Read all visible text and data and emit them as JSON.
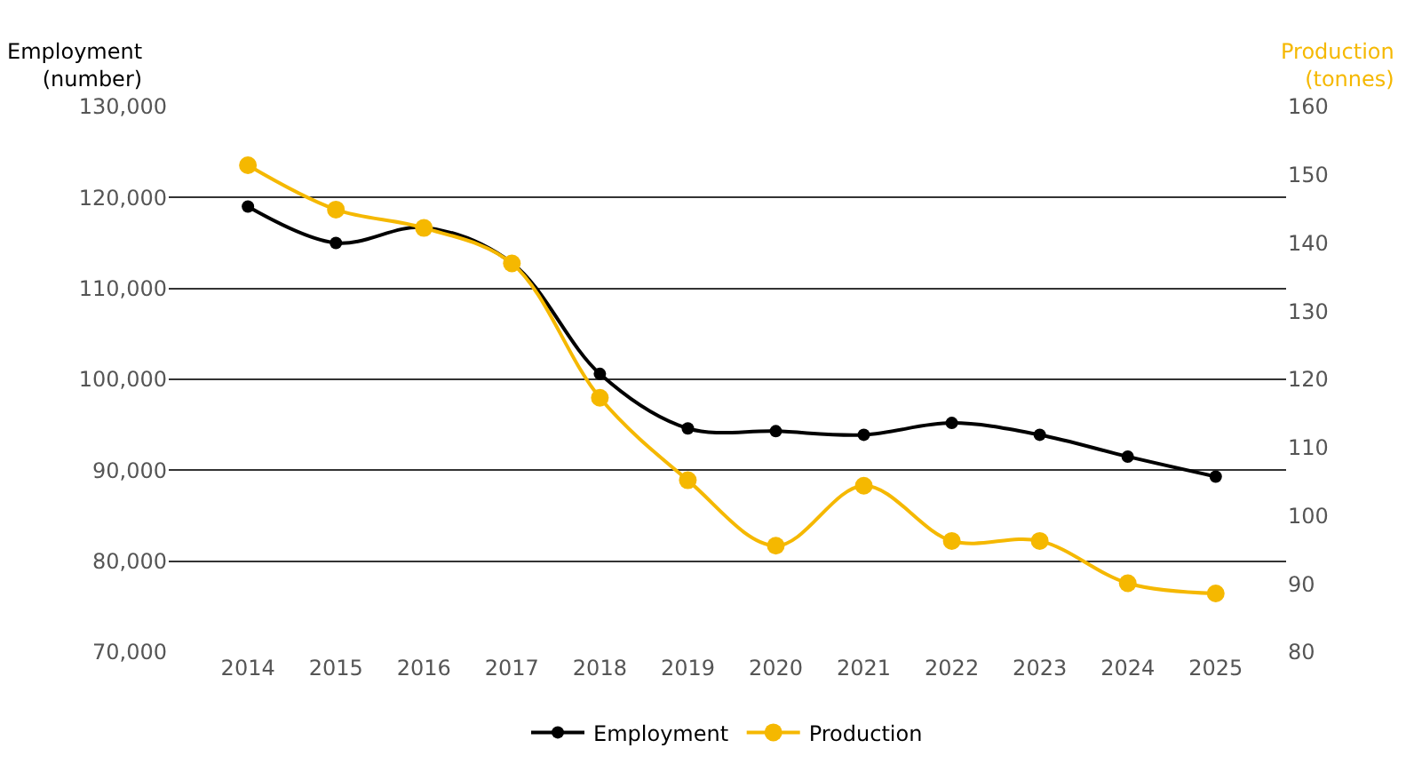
{
  "chart_data": {
    "type": "line",
    "ylabel": "Employment\n(number)",
    "y2label": "Production\n(tonnes)",
    "categories": [
      "2014",
      "2015",
      "2016",
      "2017",
      "2018",
      "2019",
      "2020",
      "2021",
      "2022",
      "2023",
      "2024",
      "2025"
    ],
    "series": [
      {
        "name": "Employment",
        "color": "#000000",
        "values": [
          119000,
          115000,
          116700,
          112800,
          100600,
          94600,
          94300,
          93900,
          95200,
          93900,
          91500,
          89300
        ]
      },
      {
        "name": "Production",
        "color": "#f5b800",
        "axis": "y2",
        "values": [
          151.4,
          144.9,
          142.2,
          137.0,
          117.3,
          105.2,
          95.6,
          104.4,
          96.3,
          96.3,
          90.1,
          88.6
        ]
      }
    ],
    "ylim": [
      70000,
      130000
    ],
    "yticks": [
      {
        "value": 70000,
        "label": "70,000"
      },
      {
        "value": 80000,
        "label": "80,000"
      },
      {
        "value": 90000,
        "label": "90,000"
      },
      {
        "value": 100000,
        "label": "100,000"
      },
      {
        "value": 110000,
        "label": "110,000"
      },
      {
        "value": 120000,
        "label": "120,000"
      },
      {
        "value": 130000,
        "label": "130,000"
      }
    ],
    "y2lim": [
      80,
      160
    ],
    "y2ticks": [
      80,
      90,
      100,
      110,
      120,
      130,
      140,
      150,
      160
    ],
    "grid": "y",
    "legend": "bottom",
    "marker": "circle",
    "line_style": "solid"
  }
}
